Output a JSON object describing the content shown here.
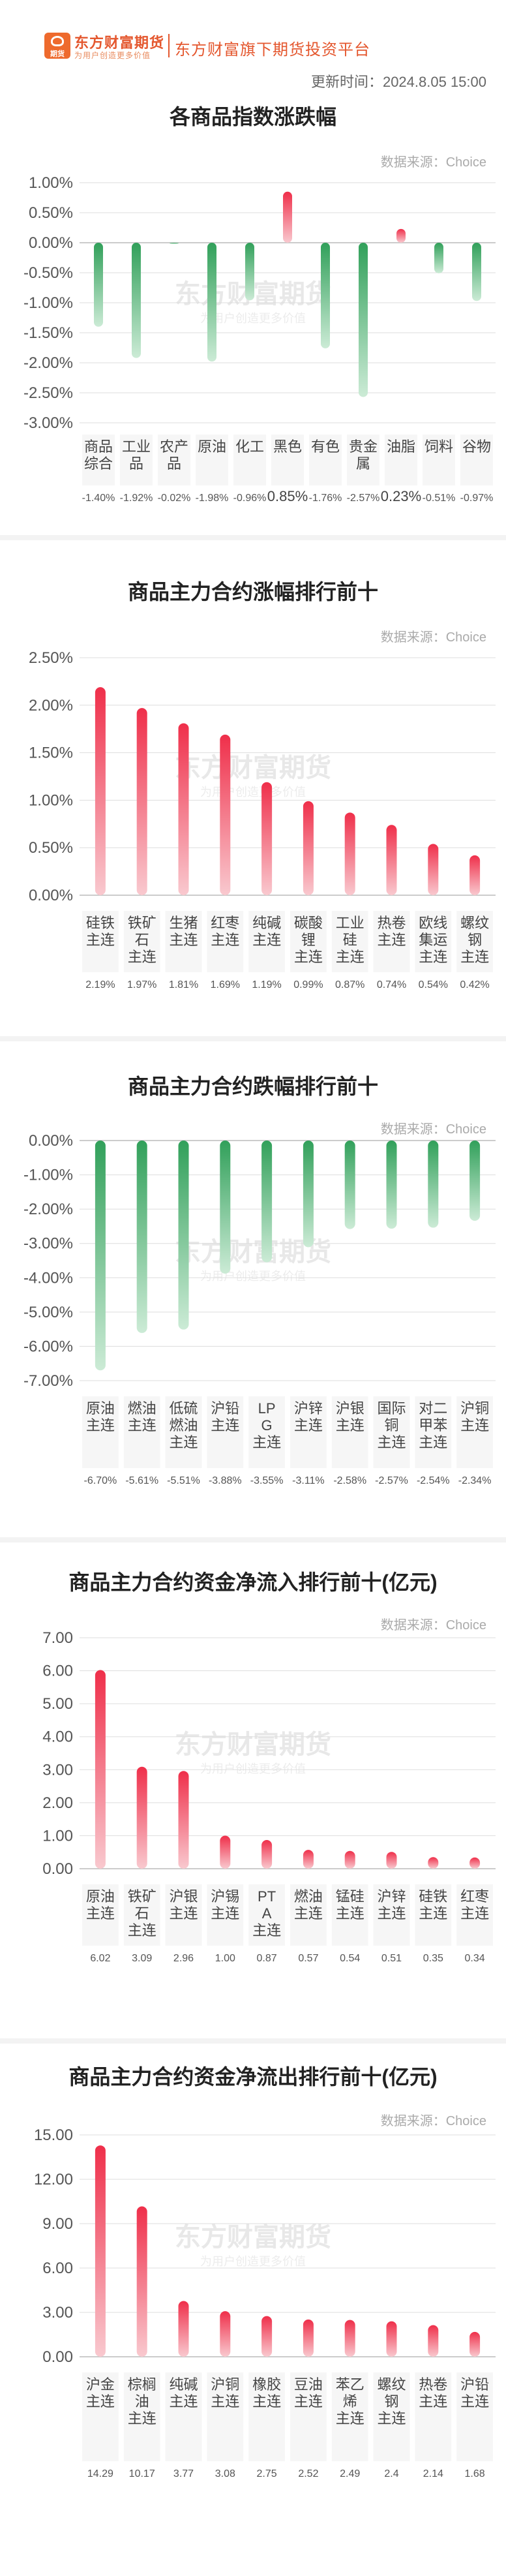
{
  "header": {
    "brand_name": "东方财富期货",
    "brand_slogan": "为用户创造更多价值",
    "logo_text": "期货",
    "platform": "东方财富旗下期货投资平台",
    "update_time": "更新时间：2024.8.05 15:00"
  },
  "charts": [
    {
      "title": "各商品指数涨跌幅",
      "source": "数据来源：Choice",
      "watermark": "东方财富期货",
      "watermark_sub": "为用户创造更多价值",
      "chart_data": {
        "type": "bar",
        "unit": "%",
        "ylim": [
          -3.0,
          1.0
        ],
        "yticks": [
          "1.00%",
          "0.50%",
          "0.00%",
          "-0.50%",
          "-1.00%",
          "-1.50%",
          "-2.00%",
          "-2.50%",
          "-3.00%"
        ],
        "categories": [
          "商品综合",
          "工业品",
          "农产品",
          "原油",
          "化工",
          "黑色",
          "有色",
          "贵金属",
          "油脂",
          "饲料",
          "谷物"
        ],
        "values": [
          -1.4,
          -1.92,
          -0.02,
          -1.98,
          -0.96,
          0.85,
          -1.76,
          -2.57,
          0.23,
          -0.51,
          -0.97
        ],
        "value_labels": [
          "-1.40%",
          "-1.92%",
          "-0.02%",
          "-1.98%",
          "-0.96%",
          "0.85%",
          "-1.76%",
          "-2.57%",
          "0.23%",
          "-0.51%",
          "-0.97%"
        ]
      }
    },
    {
      "title": "商品主力合约涨幅排行前十",
      "source": "数据来源：Choice",
      "watermark": "东方财富期货",
      "watermark_sub": "为用户创造更多价值",
      "chart_data": {
        "type": "bar",
        "unit": "%",
        "ylim": [
          0,
          2.5
        ],
        "yticks": [
          "2.50%",
          "2.00%",
          "1.50%",
          "1.00%",
          "0.50%",
          "0.00%"
        ],
        "categories": [
          "硅铁主连",
          "铁矿石主连",
          "生猪主连",
          "红枣主连",
          "纯碱主连",
          "碳酸锂主连",
          "工业硅主连",
          "热卷主连",
          "欧线集运主连",
          "螺纹钢主连"
        ],
        "values": [
          2.19,
          1.97,
          1.81,
          1.69,
          1.19,
          0.99,
          0.87,
          0.74,
          0.54,
          0.42
        ],
        "value_labels": [
          "2.19%",
          "1.97%",
          "1.81%",
          "1.69%",
          "1.19%",
          "0.99%",
          "0.87%",
          "0.74%",
          "0.54%",
          "0.42%"
        ]
      }
    },
    {
      "title": "商品主力合约跌幅排行前十",
      "source": "数据来源：Choice",
      "watermark": "东方财富期货",
      "watermark_sub": "为用户创造更多价值",
      "chart_data": {
        "type": "bar",
        "unit": "%",
        "ylim": [
          -7.0,
          0
        ],
        "yticks": [
          "0.00%",
          "-1.00%",
          "-2.00%",
          "-3.00%",
          "-4.00%",
          "-5.00%",
          "-6.00%",
          "-7.00%"
        ],
        "categories": [
          "原油主连",
          "燃油主连",
          "低硫燃油主连",
          "沪铅主连",
          "LPG主连",
          "沪锌主连",
          "沪银主连",
          "国际铜主连",
          "对二甲苯主连",
          "沪铜主连"
        ],
        "values": [
          -6.7,
          -5.61,
          -5.51,
          -3.88,
          -3.55,
          -3.11,
          -2.58,
          -2.57,
          -2.54,
          -2.34
        ],
        "value_labels": [
          "-6.70%",
          "-5.61%",
          "-5.51%",
          "-3.88%",
          "-3.55%",
          "-3.11%",
          "-2.58%",
          "-2.57%",
          "-2.54%",
          "-2.34%"
        ]
      }
    },
    {
      "title": "商品主力合约资金净流入排行前十(亿元)",
      "source": "数据来源：Choice",
      "watermark": "东方财富期货",
      "watermark_sub": "为用户创造更多价值",
      "chart_data": {
        "type": "bar",
        "unit": "亿元",
        "ylim": [
          0,
          7.0
        ],
        "yticks": [
          "7.00",
          "6.00",
          "5.00",
          "4.00",
          "3.00",
          "2.00",
          "1.00",
          "0.00"
        ],
        "categories": [
          "原油主连",
          "铁矿石主连",
          "沪银主连",
          "沪锡主连",
          "PTA主连",
          "燃油主连",
          "锰硅主连",
          "沪锌主连",
          "硅铁主连",
          "红枣主连"
        ],
        "values": [
          6.02,
          3.09,
          2.96,
          1.0,
          0.87,
          0.57,
          0.54,
          0.51,
          0.35,
          0.34
        ],
        "value_labels": [
          "6.02",
          "3.09",
          "2.96",
          "1.00",
          "0.87",
          "0.57",
          "0.54",
          "0.51",
          "0.35",
          "0.34"
        ]
      }
    },
    {
      "title": "商品主力合约资金净流出排行前十(亿元)",
      "source": "数据来源：Choice",
      "watermark": "东方财富期货",
      "watermark_sub": "为用户创造更多价值",
      "chart_data": {
        "type": "bar",
        "unit": "亿元",
        "ylim": [
          0,
          15.0
        ],
        "yticks": [
          "15.00",
          "12.00",
          "9.00",
          "6.00",
          "3.00",
          "0.00"
        ],
        "categories": [
          "沪金主连",
          "棕榈油主连",
          "纯碱主连",
          "沪铜主连",
          "橡胶主连",
          "豆油主连",
          "苯乙烯主连",
          "螺纹钢主连",
          "热卷主连",
          "沪铅主连"
        ],
        "values": [
          14.29,
          10.17,
          3.77,
          3.08,
          2.75,
          2.52,
          2.49,
          2.4,
          2.14,
          1.68
        ],
        "value_labels": [
          "14.29",
          "10.17",
          "3.77",
          "3.08",
          "2.75",
          "2.52",
          "2.49",
          "2.4",
          "2.14",
          "1.68"
        ]
      }
    }
  ],
  "colors": {
    "up_top": "#f9c9cf",
    "up_bottom": "#ef2f4a",
    "down_top": "#31a05a",
    "down_bottom": "#ccebd6",
    "grid": "#dddddd",
    "zero": "#bbbbbb",
    "brand": "#e4572e"
  }
}
